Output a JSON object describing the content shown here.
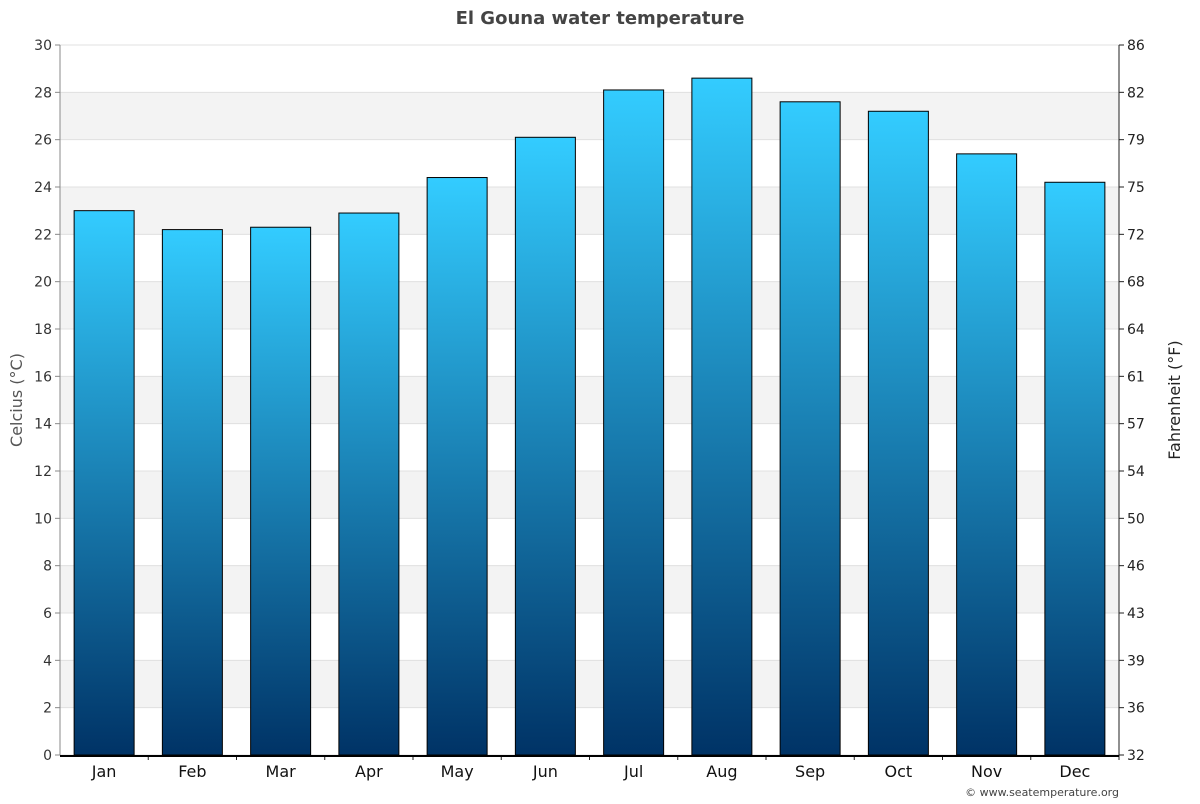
{
  "chart_data": {
    "type": "bar",
    "title": "El Gouna water temperature",
    "ylabel": "Celcius (°C)",
    "ylabel_right": "Fahrenheit (°F)",
    "categories": [
      "Jan",
      "Feb",
      "Mar",
      "Apr",
      "May",
      "Jun",
      "Jul",
      "Aug",
      "Sep",
      "Oct",
      "Nov",
      "Dec"
    ],
    "values": [
      23.0,
      22.2,
      22.3,
      22.9,
      24.4,
      26.1,
      28.1,
      28.6,
      27.6,
      27.2,
      25.4,
      24.2
    ],
    "ylim": [
      0,
      30
    ],
    "yticks": [
      "0",
      "2",
      "4",
      "6",
      "8",
      "10",
      "12",
      "14",
      "16",
      "18",
      "20",
      "22",
      "24",
      "26",
      "28",
      "30"
    ],
    "yticks_right": [
      "32",
      "36",
      "39",
      "43",
      "46",
      "50",
      "54",
      "57",
      "61",
      "64",
      "68",
      "72",
      "75",
      "79",
      "82",
      "86"
    ],
    "grid": true,
    "colors": {
      "bar_top": "#33ccff",
      "bar_bottom": "#003366",
      "band": "#f3f3f3"
    }
  },
  "credit": "© www.seatemperature.org"
}
